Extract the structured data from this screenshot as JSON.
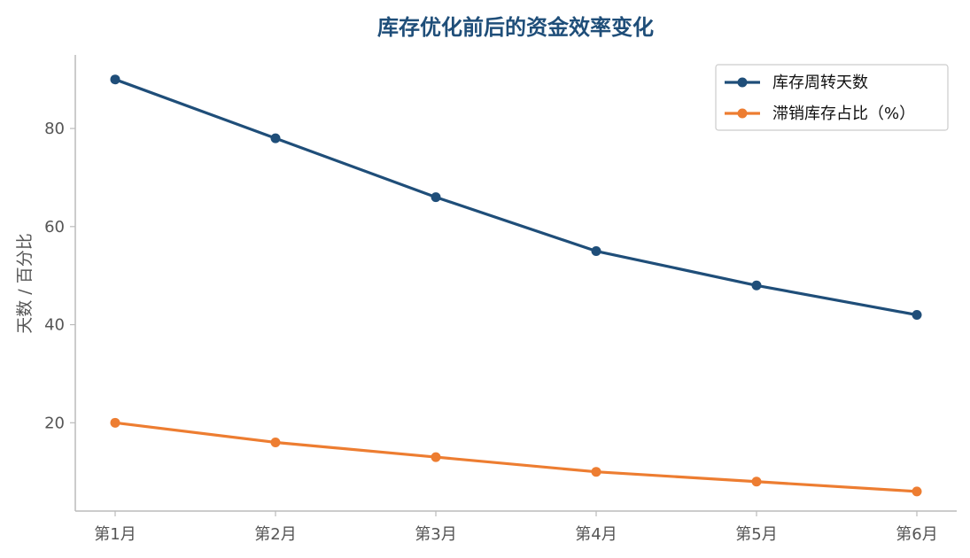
{
  "chart_data": {
    "type": "line",
    "title": "库存优化前后的资金效率变化",
    "xlabel": "",
    "ylabel": "天数 / 百分比",
    "categories": [
      "第1月",
      "第2月",
      "第3月",
      "第4月",
      "第5月",
      "第6月"
    ],
    "ylim": [
      2,
      95
    ],
    "yticks": [
      20,
      40,
      60,
      80
    ],
    "grid": false,
    "legend_position": "top-right",
    "series": [
      {
        "name": "库存周转天数",
        "values": [
          90,
          78,
          66,
          55,
          48,
          42
        ],
        "color": "#1f4e79"
      },
      {
        "name": "滞销库存占比（%）",
        "values": [
          20,
          16,
          13,
          10,
          8,
          6
        ],
        "color": "#ed7d31"
      }
    ],
    "title_color": "#1f4e79",
    "axis_color": "#bbbbbb"
  }
}
